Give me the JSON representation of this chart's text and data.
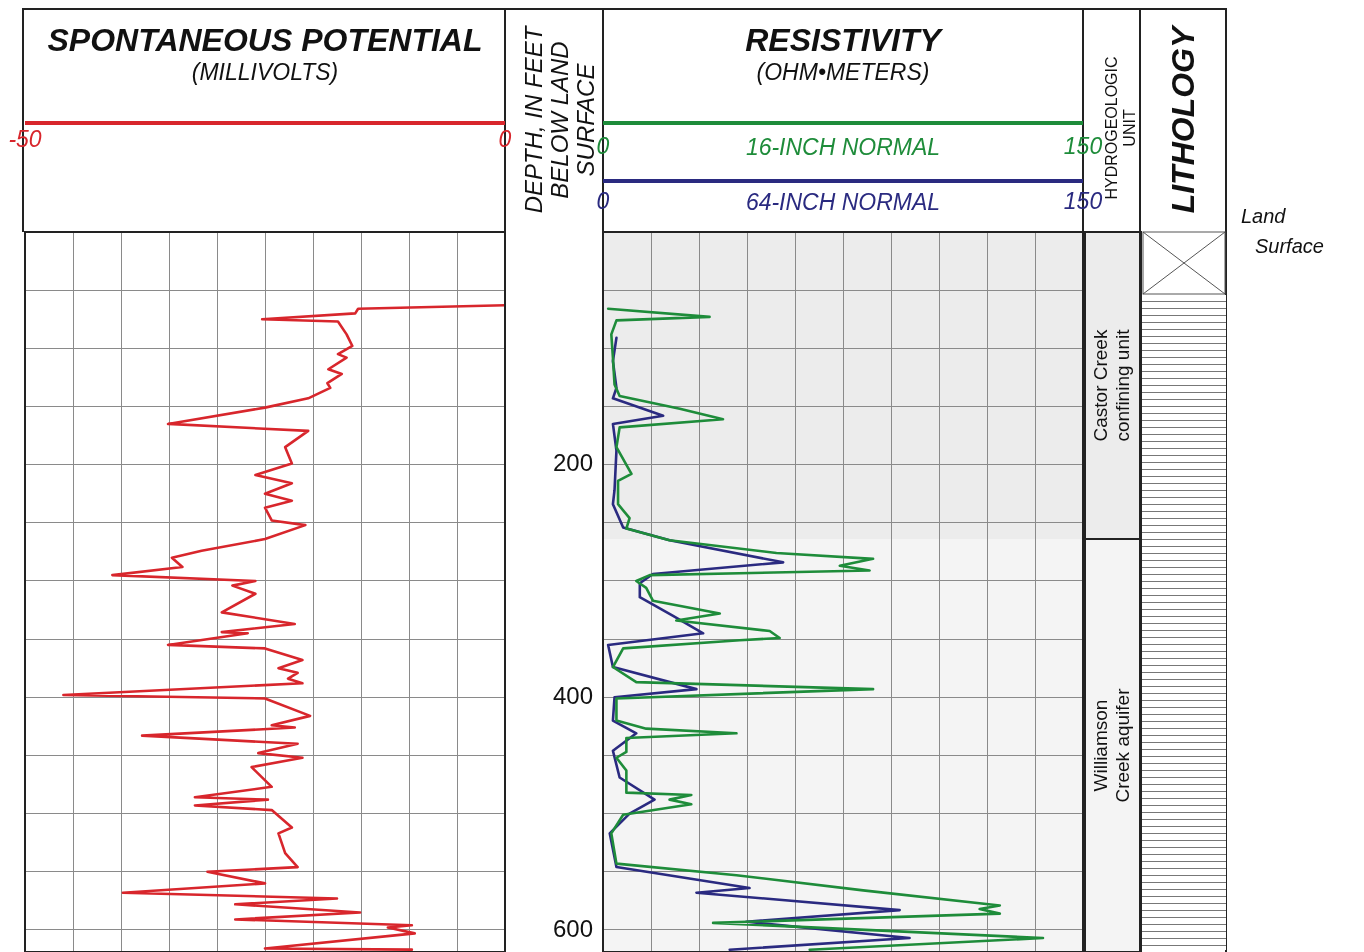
{
  "chart_data": [
    {
      "type": "line",
      "title": "SPONTANEOUS POTENTIAL",
      "xlabel": "(MILLIVOLTS)",
      "orientation": "horizontal",
      "grid": true,
      "marker": "none",
      "tick_labels": "x",
      "xlim": [
        -50,
        0
      ],
      "xticks": [
        -50,
        {
          "value": -45,
          "label": null
        },
        {
          "value": -40,
          "label": null
        },
        {
          "value": -35,
          "label": null
        },
        {
          "value": -30,
          "label": null
        },
        {
          "value": -25,
          "label": null
        },
        {
          "value": -20,
          "label": null
        },
        {
          "value": -15,
          "label": null
        },
        {
          "value": -10,
          "label": null
        },
        {
          "value": -5,
          "label": null
        },
        0
      ],
      "ylim": [
        619,
        0
      ],
      "yticks": [
        {
          "value": 50,
          "label": null
        },
        {
          "value": 100,
          "label": null
        },
        {
          "value": 150,
          "label": null
        },
        200,
        {
          "value": 250,
          "label": null
        },
        {
          "value": 300,
          "label": null
        },
        {
          "value": 350,
          "label": null
        },
        400,
        {
          "value": 450,
          "label": null
        },
        {
          "value": 500,
          "label": null
        },
        {
          "value": 550,
          "label": null
        },
        600
      ],
      "series": [
        {
          "color": "#d8262c",
          "x": [
            63,
            66,
            70,
            75,
            77,
            88,
            98,
            105,
            108,
            118,
            122,
            130,
            134,
            143,
            151,
            165,
            171,
            185,
            199,
            209,
            216,
            225,
            231,
            237,
            248,
            252,
            264,
            274,
            280,
            288,
            295,
            300,
            304,
            311,
            327,
            337,
            344,
            345,
            355,
            358,
            368,
            375,
            379,
            384,
            388,
            398,
            401,
            416,
            424,
            426,
            433,
            440,
            448,
            452,
            460,
            477,
            486,
            488,
            493,
            497,
            512,
            517,
            534,
            546,
            550,
            560,
            568,
            573,
            578,
            585,
            591,
            596,
            598,
            603,
            616,
            617
          ],
          "values": [
            0,
            -15.3,
            -15.6,
            -25.3,
            -17.4,
            -16.5,
            -15.9,
            -17.4,
            -16.5,
            -18.4,
            -17.0,
            -18.5,
            -18.2,
            -20.5,
            -25.0,
            -35.1,
            -20.5,
            -22.9,
            -22.2,
            -26.0,
            -22.2,
            -25.0,
            -22.2,
            -25.0,
            -24.3,
            -20.8,
            -25.0,
            -31.6,
            -34.7,
            -33.6,
            -40.9,
            -26.0,
            -28.4,
            -26.0,
            -29.5,
            -21.9,
            -29.5,
            -26.8,
            -35.1,
            -25.0,
            -21.1,
            -23.6,
            -21.6,
            -22.6,
            -21.1,
            -46.0,
            -25.0,
            -20.3,
            -24.3,
            -21.9,
            -37.8,
            -21.6,
            -25.7,
            -21.1,
            -26.4,
            -24.3,
            -32.3,
            -24.7,
            -32.3,
            -24.3,
            -22.2,
            -23.6,
            -22.9,
            -21.6,
            -31.0,
            -25.0,
            -39.8,
            -17.5,
            -28.1,
            -15.1,
            -28.1,
            -9.7,
            -12.2,
            -9.4,
            -25.0,
            -9.7
          ]
        }
      ]
    },
    {
      "type": "line",
      "title": "RESISTIVITY",
      "xlabel": "(OHM•METERS)",
      "ylabel": "DEPTH, IN FEET BELOW LAND SURFACE",
      "orientation": "horizontal",
      "grid": true,
      "marker": "none",
      "xlim": [
        0,
        150
      ],
      "xticks": [
        0,
        {
          "value": 15,
          "label": null
        },
        {
          "value": 30,
          "label": null
        },
        {
          "value": 45,
          "label": null
        },
        {
          "value": 60,
          "label": null
        },
        {
          "value": 75,
          "label": null
        },
        {
          "value": 90,
          "label": null
        },
        {
          "value": 105,
          "label": null
        },
        {
          "value": 120,
          "label": null
        },
        {
          "value": 135,
          "label": null
        },
        150
      ],
      "x2lim": [
        0,
        150
      ],
      "x2ticks": [
        0,
        {
          "value": 15,
          "label": null
        },
        {
          "value": 30,
          "label": null
        },
        {
          "value": 45,
          "label": null
        },
        {
          "value": 60,
          "label": null
        },
        {
          "value": 75,
          "label": null
        },
        {
          "value": 90,
          "label": null
        },
        {
          "value": 105,
          "label": null
        },
        {
          "value": 120,
          "label": null
        },
        {
          "value": 135,
          "label": null
        },
        150
      ],
      "ylim": [
        619,
        0
      ],
      "yticks": [
        {
          "value": 50,
          "label": null
        },
        {
          "value": 100,
          "label": null
        },
        {
          "value": 150,
          "label": null
        },
        200,
        {
          "value": 250,
          "label": null
        },
        {
          "value": 300,
          "label": null
        },
        {
          "value": 350,
          "label": null
        },
        400,
        {
          "value": 450,
          "label": null
        },
        {
          "value": 500,
          "label": null
        },
        {
          "value": 550,
          "label": null
        },
        600
      ],
      "bands": [
        {
          "axis": "y",
          "from": 0,
          "to": 264,
          "label": "Castor Creek confining unit",
          "color": "#ececec"
        },
        {
          "axis": "y",
          "from": 264,
          "to": 619,
          "label": "Williamson Creek aquifer",
          "color": "#f4f4f4"
        }
      ],
      "annotations": [
        "HYDROGEOLOGIC UNIT",
        "LITHOLOGY",
        "Land Surface"
      ],
      "series": [
        {
          "name": "16-INCH NORMAL",
          "color": "#1e8c3a",
          "x": [
            66,
            73,
            76,
            88,
            108,
            131,
            141,
            152,
            161,
            168,
            185,
            208,
            214,
            234,
            246,
            255,
            265,
            276,
            281,
            287,
            291,
            295,
            300,
            306,
            317,
            328,
            334,
            343,
            349,
            351,
            358,
            374,
            387,
            393,
            401,
            420,
            427,
            431,
            435,
            447,
            452,
            463,
            482,
            484,
            488,
            492,
            501,
            517,
            543,
            553,
            566,
            579,
            582,
            586,
            594,
            607,
            617
          ],
          "values": [
            1.6,
            33.3,
            4.2,
            2.6,
            3.1,
            3.6,
            5.2,
            24,
            37.5,
            5.2,
            4.2,
            8.9,
            4.7,
            4.7,
            8.3,
            7.3,
            20.8,
            54.2,
            84.4,
            74,
            83.3,
            14.6,
            10.4,
            13.5,
            15.6,
            36.5,
            22.9,
            52.1,
            55.2,
            42.7,
            6.3,
            3.1,
            10.4,
            84.4,
            4.2,
            4.2,
            13.5,
            41.7,
            7.3,
            7.3,
            4.2,
            7.3,
            7.3,
            27.6,
            20.8,
            27.6,
            6.3,
            2.6,
            4.2,
            41.7,
            81.3,
            124,
            117.7,
            124,
            34.4,
            137.5,
            64.6
          ]
        },
        {
          "name": "64-INCH NORMAL",
          "color": "#2a2a80",
          "axis": "x2",
          "x": [
            91,
            111,
            134,
            143,
            158,
            165,
            188,
            222,
            234,
            254,
            265,
            284,
            294,
            302,
            314,
            330,
            345,
            355,
            374,
            393,
            400,
            420,
            431,
            446,
            469,
            488,
            500,
            517,
            546,
            564,
            568,
            583,
            593,
            607,
            617
          ],
          "values": [
            4.2,
            3.1,
            4.2,
            3.1,
            18.8,
            3.1,
            4.2,
            3.6,
            3.1,
            6.3,
            20.8,
            56.3,
            15.6,
            11.5,
            11.5,
            21.9,
            31.3,
            1.6,
            3.1,
            29.2,
            3.6,
            3.1,
            10.4,
            3.1,
            5.2,
            16.1,
            8.3,
            2.1,
            4.2,
            45.8,
            29.2,
            92.7,
            44.8,
            95.8,
            39.6
          ]
        }
      ]
    }
  ]
}
